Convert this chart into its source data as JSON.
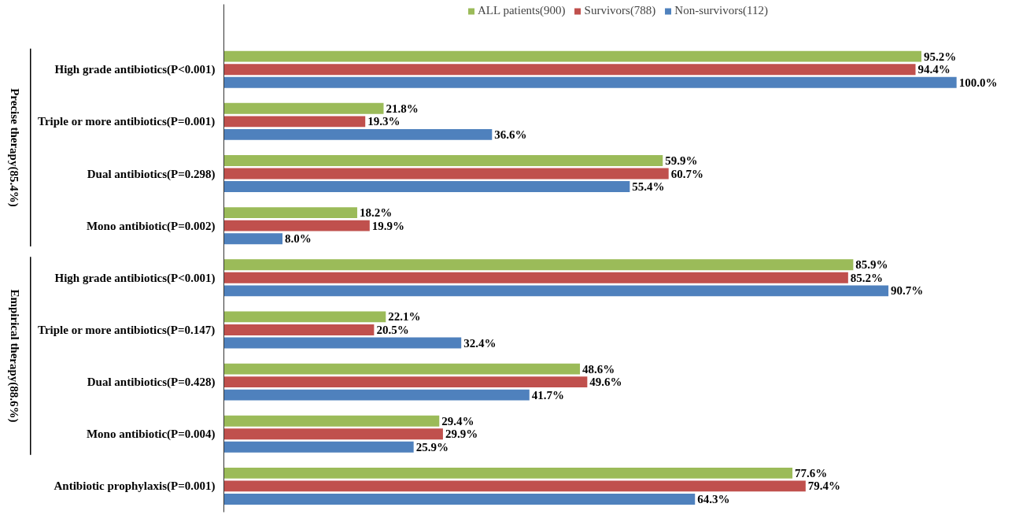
{
  "chart_data": {
    "type": "bar",
    "orientation": "horizontal",
    "categories": [
      "High grade antibiotics(P<0.001)",
      "Triple or more antibiotics(P=0.001)",
      "Dual antibiotics(P=0.298)",
      "Mono antibiotic(P=0.002)",
      "High grade antibiotics(P<0.001)",
      "Triple or more antibiotics(P=0.147)",
      "Dual antibiotics(P=0.428)",
      "Mono antibiotic(P=0.004)",
      "Antibiotic prophylaxis(P=0.001)"
    ],
    "series": [
      {
        "name": "ALL patients(900)",
        "color": "#9bbb59",
        "values": [
          95.2,
          21.8,
          59.9,
          18.2,
          85.9,
          22.1,
          48.6,
          29.4,
          77.6
        ],
        "value_labels": [
          "95.2%",
          "21.8%",
          "59.9%",
          "18.2%",
          "85.9%",
          "22.1%",
          "48.6%",
          "29.4%",
          "77.6%"
        ]
      },
      {
        "name": "Survivors(788)",
        "color": "#c0504d",
        "values": [
          94.4,
          19.3,
          60.7,
          19.9,
          85.2,
          20.5,
          49.6,
          29.9,
          79.4
        ],
        "value_labels": [
          "94.4%",
          "19.3%",
          "60.7%",
          "19.9%",
          "85.2%",
          "20.5%",
          "49.6%",
          "29.9%",
          "79.4%"
        ]
      },
      {
        "name": "Non-survivors(112)",
        "color": "#4f81bd",
        "values": [
          100.0,
          36.6,
          55.4,
          8.0,
          90.7,
          32.4,
          41.7,
          25.9,
          64.3
        ],
        "value_labels": [
          "100.0%",
          "36.6%",
          "55.4%",
          "8.0%",
          "90.7%",
          "32.4%",
          "41.7%",
          "25.9%",
          "64.3%"
        ]
      }
    ],
    "annotations": [
      "Precise therapy(85.4%)",
      "Empirical therapy(88.6%)"
    ],
    "tick_labels": "y",
    "grid": false,
    "legend": "top"
  }
}
